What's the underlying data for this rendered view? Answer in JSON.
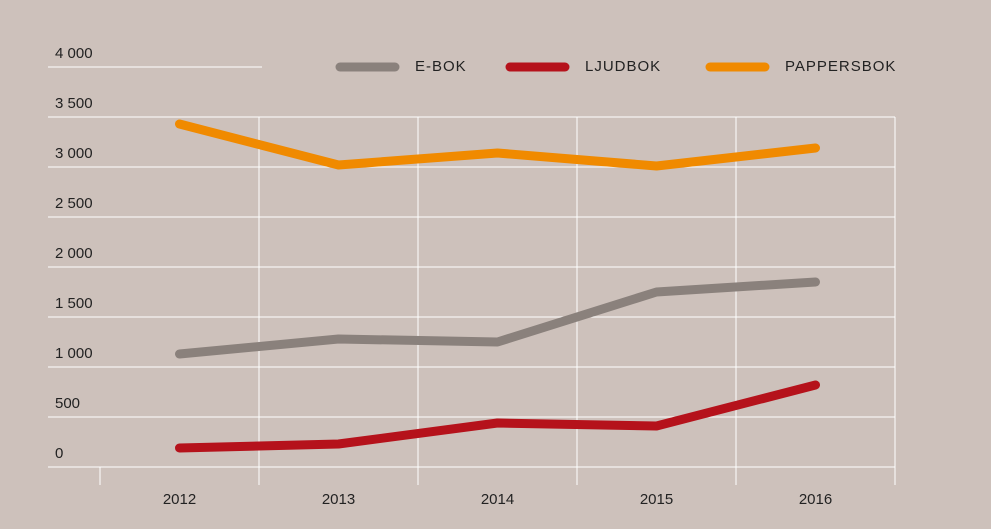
{
  "chart_data": {
    "type": "line",
    "categories": [
      "2012",
      "2013",
      "2014",
      "2015",
      "2016"
    ],
    "series": [
      {
        "name": "E-BOK",
        "color": "#8a817c",
        "values": [
          1130,
          1280,
          1250,
          1750,
          1850
        ]
      },
      {
        "name": "LJUDBOK",
        "color": "#b5121b",
        "values": [
          190,
          230,
          440,
          410,
          820
        ]
      },
      {
        "name": "PAPPERSBOK",
        "color": "#f08a00",
        "values": [
          3430,
          3020,
          3140,
          3010,
          3190
        ]
      }
    ],
    "ylim": [
      0,
      4000
    ],
    "yticks": [
      0,
      500,
      {
        "value": 1000,
        "label": "1 000"
      },
      {
        "value": 1500,
        "label": "1 500"
      },
      {
        "value": 2000,
        "label": "2 000"
      },
      {
        "value": 2500,
        "label": "2 500"
      },
      {
        "value": 3000,
        "label": "3 000"
      },
      {
        "value": 3500,
        "label": "3 500"
      },
      {
        "value": 4000,
        "label": "4 000"
      }
    ],
    "grid": true,
    "legend": "top"
  }
}
